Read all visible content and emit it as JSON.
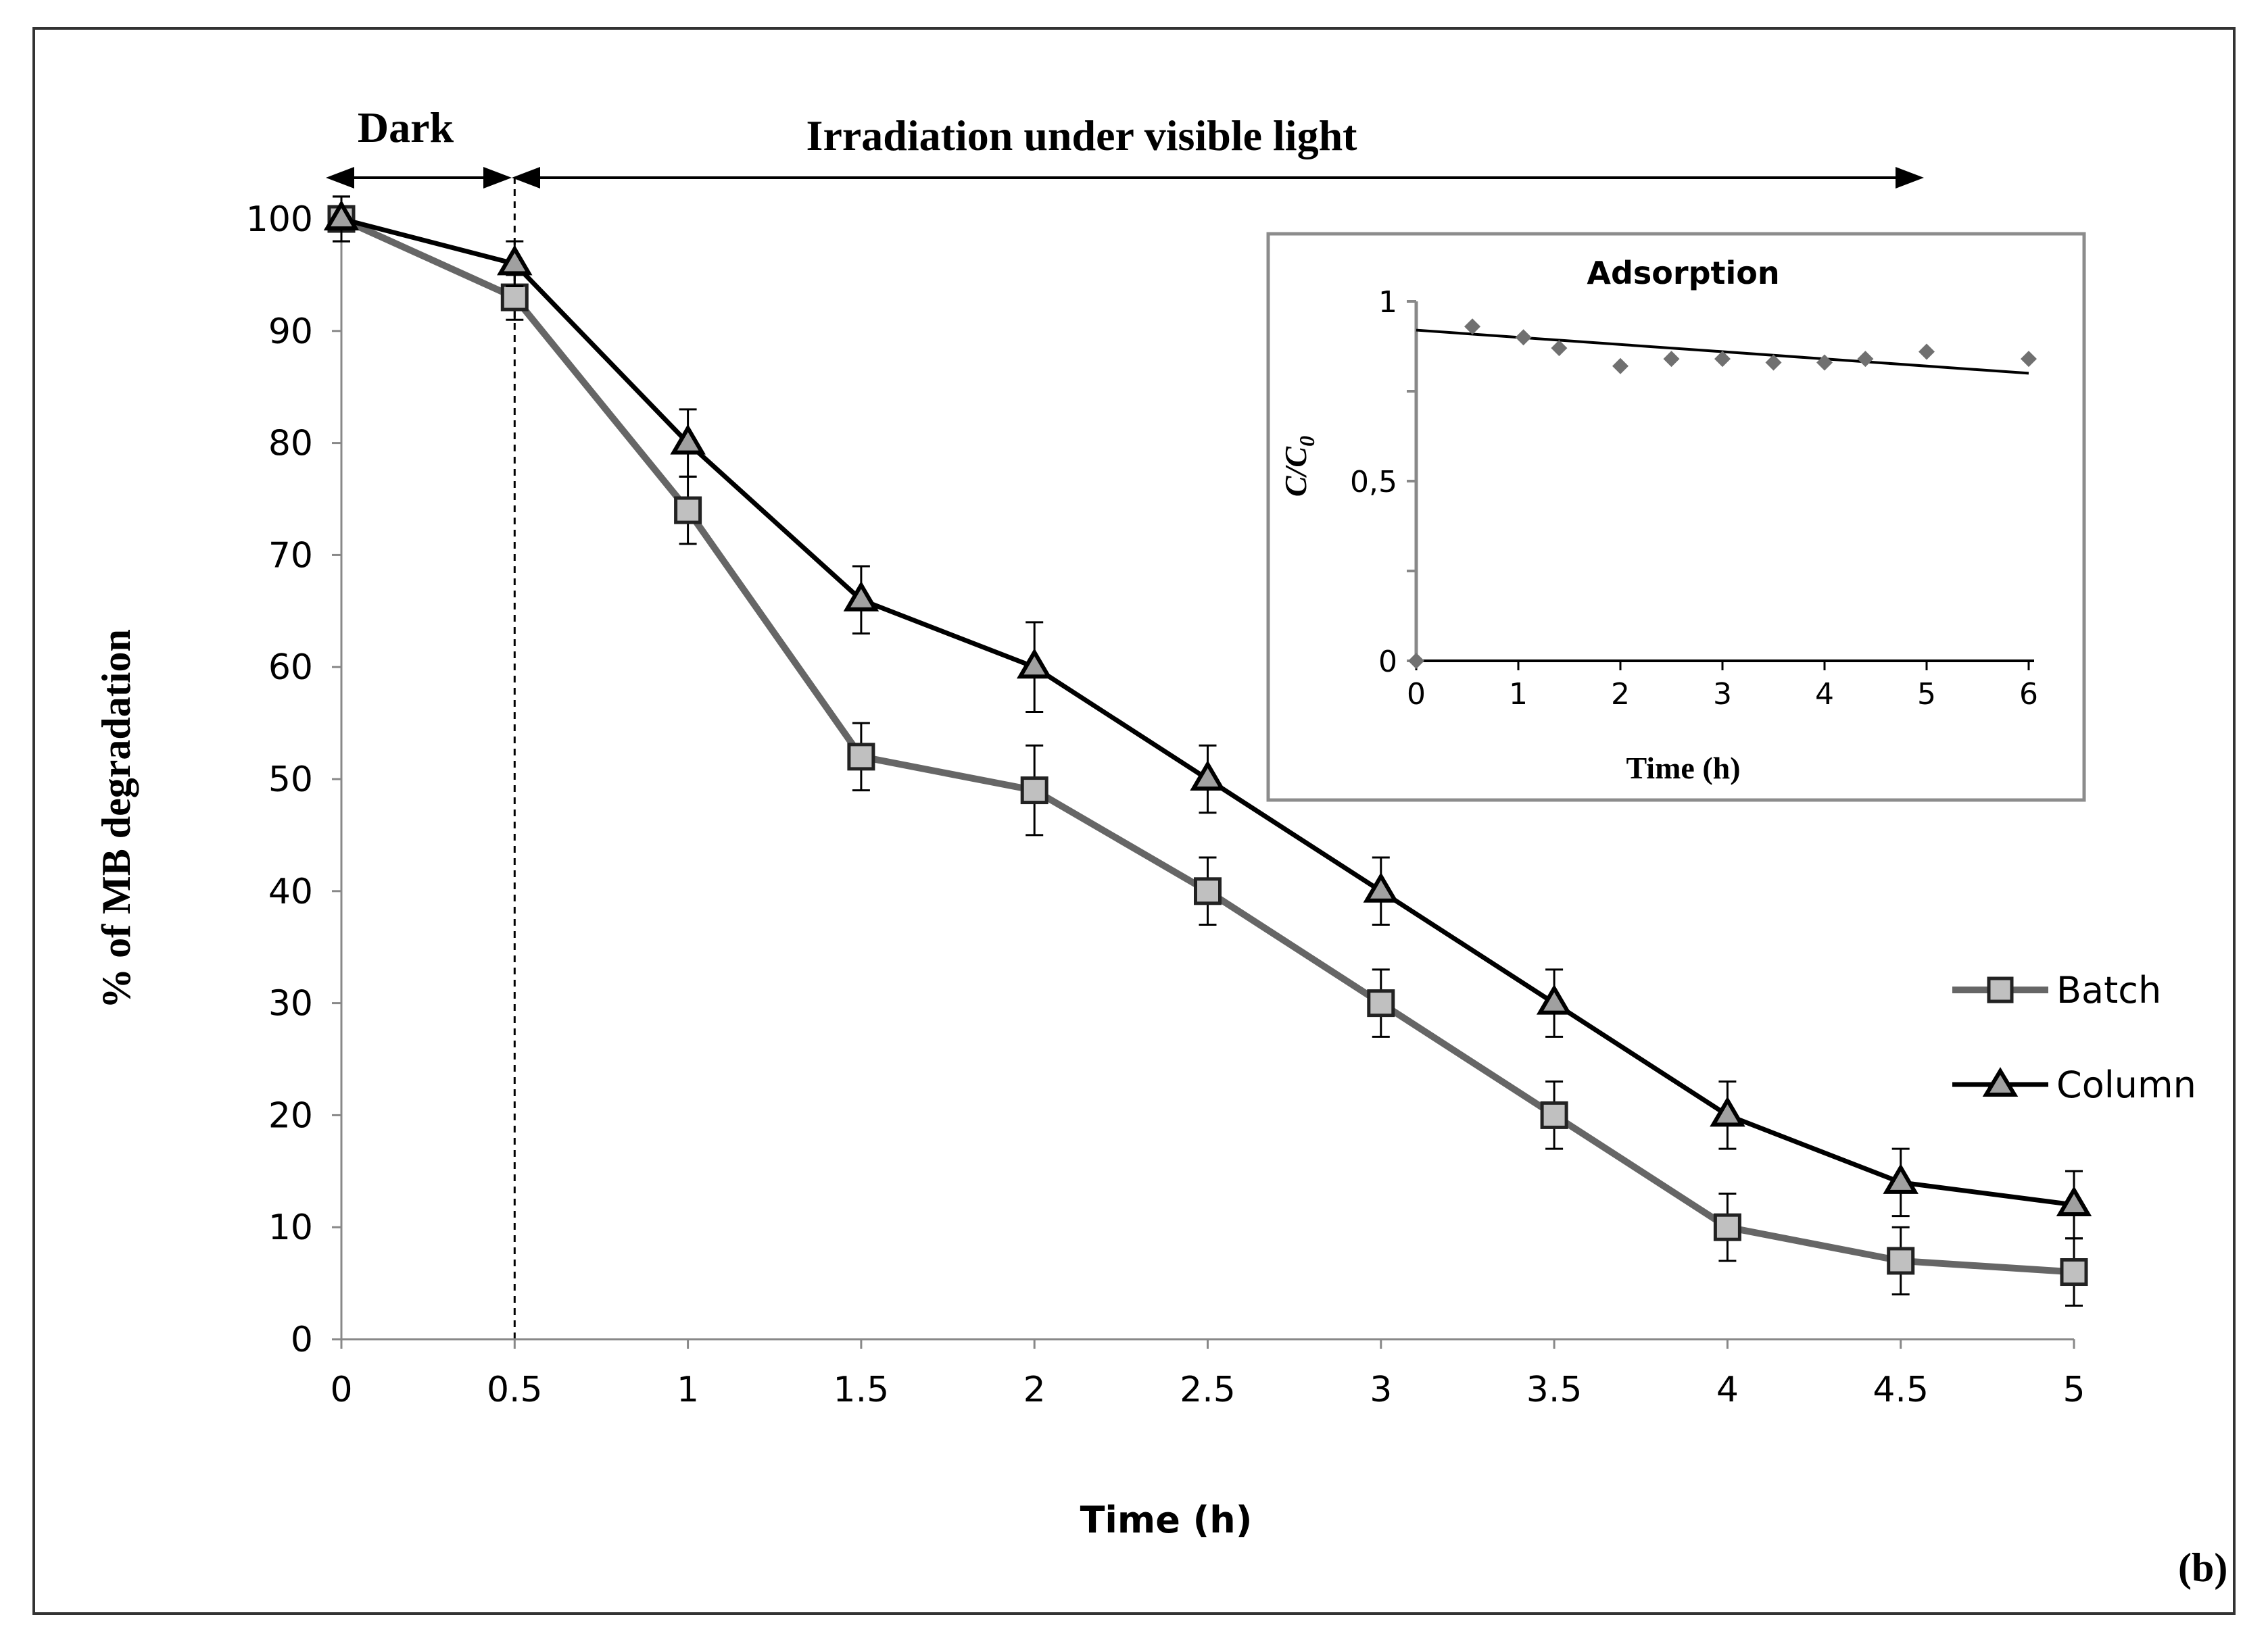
{
  "figure": {
    "panel_label": "(b)",
    "dark_label": "Dark",
    "irradiation_label": "Irradiation under visible light"
  },
  "chart_data": [
    {
      "type": "line",
      "title": "",
      "xlabel": "Time (h)",
      "ylabel": "% of MB degradation",
      "x": [
        0,
        0.5,
        1,
        1.5,
        2,
        2.5,
        3,
        3.5,
        4,
        4.5,
        5
      ],
      "x_ticks": [
        "0",
        "0.5",
        "1",
        "1.5",
        "2",
        "2.5",
        "3",
        "3.5",
        "4",
        "4.5",
        "5"
      ],
      "y_ticks": [
        "0",
        "10",
        "20",
        "30",
        "40",
        "50",
        "60",
        "70",
        "80",
        "90",
        "100"
      ],
      "xlim": [
        0,
        5
      ],
      "ylim": [
        0,
        100
      ],
      "grid": false,
      "legend_position": "right",
      "series": [
        {
          "name": "Batch",
          "marker": "square",
          "color": "#666666",
          "marker_fill": "#c0c0c0",
          "values": [
            100,
            93,
            74,
            52,
            49,
            40,
            30,
            20,
            10,
            7,
            6
          ],
          "errors": [
            2,
            2,
            3,
            3,
            4,
            3,
            3,
            3,
            3,
            3,
            3
          ]
        },
        {
          "name": "Column",
          "marker": "triangle",
          "color": "#000000",
          "marker_fill": "#a0a0a0",
          "values": [
            100,
            96,
            80,
            66,
            60,
            50,
            40,
            30,
            20,
            14,
            12
          ],
          "errors": [
            2,
            2,
            3,
            3,
            4,
            3,
            3,
            3,
            3,
            3,
            3
          ]
        }
      ]
    },
    {
      "type": "scatter",
      "title": "Adsorption",
      "xlabel": "Time (h)",
      "ylabel": "C/C0",
      "ylabel_main": "C/C",
      "ylabel_sub": "0",
      "x_ticks": [
        "0",
        "1",
        "2",
        "3",
        "4",
        "5",
        "6"
      ],
      "y_ticks": [
        "0",
        "0,5",
        "1"
      ],
      "xlim": [
        0,
        6
      ],
      "ylim": [
        0,
        1
      ],
      "points": {
        "x": [
          0,
          0.55,
          1.05,
          1.4,
          2.0,
          2.5,
          3.0,
          3.5,
          4.0,
          4.4,
          5.0,
          6.0
        ],
        "y": [
          0,
          0.93,
          0.9,
          0.87,
          0.82,
          0.84,
          0.84,
          0.83,
          0.83,
          0.84,
          0.86,
          0.84
        ]
      },
      "trendline": {
        "x": [
          0,
          6
        ],
        "y": [
          0.92,
          0.8
        ]
      },
      "point_color": "#707070"
    }
  ]
}
